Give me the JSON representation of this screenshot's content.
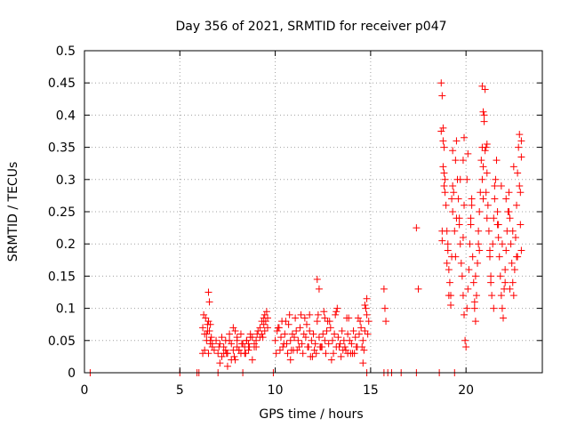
{
  "chart_data": {
    "type": "scatter",
    "title": "Day 356 of 2021, SRMTID for receiver p047",
    "xlabel": "GPS time / hours",
    "ylabel": "SRMTID / TECUs",
    "xlim": [
      0,
      24
    ],
    "ylim": [
      0,
      0.5
    ],
    "xticks": [
      0,
      5,
      10,
      15,
      20
    ],
    "yticks": [
      0,
      0.05,
      0.1,
      0.15,
      0.2,
      0.25,
      0.3,
      0.35,
      0.4,
      0.45,
      0.5
    ],
    "xtick_labels": [
      "0",
      "5",
      "10",
      "15",
      "20"
    ],
    "ytick_labels": [
      "0",
      "0.05",
      "0.1",
      "0.15",
      "0.2",
      "0.25",
      "0.3",
      "0.35",
      "0.4",
      "0.45",
      "0.5"
    ],
    "grid": true,
    "marker": "plus",
    "color": "#ff0000",
    "series": [
      {
        "name": "SRMTID",
        "x": [
          0.3,
          5.0,
          5.9,
          6.0,
          15.7,
          15.9,
          16.1,
          16.6,
          17.4,
          18.6,
          19.4,
          7.0,
          8.3,
          9.9,
          14.8,
          6.2,
          6.3,
          6.4,
          6.5,
          6.6,
          6.7,
          6.8,
          6.9,
          7.0,
          7.1,
          7.2,
          7.3,
          7.4,
          7.5,
          7.6,
          7.7,
          7.8,
          7.9,
          8.0,
          8.1,
          8.2,
          8.3,
          8.4,
          8.5,
          8.6,
          8.7,
          8.8,
          8.9,
          9.0,
          9.1,
          9.2,
          9.3,
          9.4,
          9.5,
          9.6,
          6.25,
          6.35,
          6.45,
          6.55,
          6.65,
          7.05,
          7.45,
          7.85,
          8.25,
          8.65,
          9.05,
          9.45,
          6.3,
          6.5,
          6.7,
          7.2,
          7.6,
          8.0,
          8.4,
          8.8,
          9.2,
          9.6,
          6.4,
          6.6,
          7.3,
          7.7,
          8.1,
          8.5,
          8.9,
          9.3,
          6.5,
          6.55,
          7.9,
          8.7,
          9.45,
          9.55,
          6.2,
          6.6,
          7.1,
          7.5,
          8.0,
          8.2,
          8.6,
          9.0,
          9.4,
          6.45,
          7.4,
          7.8,
          8.45,
          9.35,
          10.0,
          10.1,
          10.2,
          10.3,
          10.4,
          10.5,
          10.6,
          10.7,
          10.8,
          10.9,
          11.0,
          11.1,
          11.2,
          11.3,
          11.4,
          11.5,
          11.6,
          11.7,
          11.8,
          11.9,
          12.0,
          12.1,
          12.2,
          12.3,
          12.4,
          12.5,
          12.6,
          12.7,
          12.8,
          12.9,
          13.0,
          13.1,
          13.2,
          13.3,
          13.4,
          13.5,
          13.6,
          13.7,
          13.8,
          13.9,
          14.0,
          14.1,
          14.2,
          14.3,
          14.4,
          14.5,
          14.6,
          14.7,
          14.8,
          14.9,
          10.05,
          10.25,
          10.45,
          10.65,
          10.85,
          11.05,
          11.25,
          11.45,
          11.65,
          11.85,
          12.05,
          12.25,
          12.45,
          12.65,
          12.85,
          13.05,
          13.25,
          13.45,
          13.65,
          13.85,
          14.05,
          14.25,
          14.45,
          14.65,
          14.85,
          10.15,
          10.55,
          10.95,
          11.35,
          11.75,
          12.15,
          12.55,
          12.95,
          13.35,
          13.75,
          14.15,
          14.55,
          14.75,
          10.35,
          10.75,
          11.15,
          11.55,
          11.95,
          12.35,
          12.75,
          13.15,
          13.55,
          13.95,
          14.35,
          12.2,
          12.3,
          14.8,
          14.7,
          13.2,
          11.8,
          12.6,
          10.8,
          13.8,
          14.6,
          15.7,
          15.75,
          15.8,
          17.4,
          17.5,
          18.7,
          18.75,
          18.8,
          18.85,
          18.9,
          18.95,
          19.0,
          19.05,
          19.1,
          19.15,
          19.2,
          19.25,
          19.3,
          19.35,
          19.4,
          19.45,
          19.5,
          19.55,
          19.6,
          19.65,
          19.7,
          19.75,
          19.8,
          19.85,
          19.9,
          19.95,
          20.0,
          20.05,
          20.1,
          20.15,
          20.2,
          20.25,
          20.3,
          20.35,
          20.4,
          20.45,
          20.5,
          20.55,
          20.6,
          20.65,
          20.7,
          20.75,
          20.8,
          20.85,
          20.9,
          20.95,
          21.0,
          21.05,
          21.1,
          21.15,
          21.2,
          21.25,
          21.3,
          21.35,
          21.4,
          21.45,
          21.5,
          21.55,
          21.6,
          21.65,
          21.7,
          21.75,
          21.8,
          21.85,
          21.9,
          21.95,
          22.0,
          22.05,
          22.1,
          22.15,
          22.2,
          22.25,
          22.3,
          22.35,
          22.4,
          22.45,
          22.5,
          22.55,
          22.6,
          22.65,
          22.7,
          22.75,
          22.8,
          22.85,
          22.9,
          18.8,
          18.9,
          19.0,
          19.1,
          19.3,
          19.5,
          19.7,
          19.9,
          20.1,
          20.3,
          20.5,
          20.7,
          20.9,
          21.1,
          21.3,
          21.5,
          21.7,
          21.9,
          22.1,
          22.3,
          22.5,
          22.7,
          22.9,
          18.75,
          18.85,
          19.05,
          19.25,
          19.45,
          19.65,
          19.85,
          20.05,
          20.25,
          20.45,
          20.65,
          20.85,
          21.05,
          21.25,
          21.45,
          21.65,
          21.85,
          22.05,
          22.25,
          22.45,
          22.65,
          22.85,
          18.7,
          18.8,
          18.75,
          18.85,
          20.85,
          20.9,
          20.95,
          19.9,
          19.85,
          21.0,
          21.1,
          22.8,
          22.9,
          19.2,
          19.3
        ],
        "y": [
          0.0,
          0.0,
          0.0,
          0.0,
          0.0,
          0.0,
          0.0,
          0.0,
          0.0,
          0.0,
          0.0,
          0.0,
          0.0,
          0.0,
          0.0,
          0.07,
          0.06,
          0.05,
          0.08,
          0.045,
          0.04,
          0.035,
          0.05,
          0.03,
          0.045,
          0.025,
          0.04,
          0.035,
          0.03,
          0.05,
          0.045,
          0.035,
          0.02,
          0.04,
          0.035,
          0.03,
          0.045,
          0.04,
          0.05,
          0.035,
          0.06,
          0.055,
          0.045,
          0.05,
          0.065,
          0.07,
          0.06,
          0.075,
          0.08,
          0.07,
          0.09,
          0.085,
          0.075,
          0.065,
          0.055,
          0.04,
          0.03,
          0.025,
          0.045,
          0.04,
          0.06,
          0.065,
          0.035,
          0.03,
          0.045,
          0.055,
          0.06,
          0.05,
          0.03,
          0.02,
          0.055,
          0.085,
          0.06,
          0.05,
          0.03,
          0.02,
          0.035,
          0.05,
          0.04,
          0.08,
          0.125,
          0.11,
          0.065,
          0.055,
          0.09,
          0.095,
          0.03,
          0.075,
          0.015,
          0.01,
          0.055,
          0.06,
          0.045,
          0.04,
          0.085,
          0.065,
          0.05,
          0.07,
          0.03,
          0.055,
          0.05,
          0.065,
          0.07,
          0.055,
          0.04,
          0.06,
          0.045,
          0.075,
          0.05,
          0.06,
          0.055,
          0.065,
          0.05,
          0.07,
          0.045,
          0.06,
          0.055,
          0.04,
          0.065,
          0.05,
          0.06,
          0.045,
          0.08,
          0.055,
          0.04,
          0.06,
          0.05,
          0.065,
          0.045,
          0.07,
          0.05,
          0.06,
          0.04,
          0.055,
          0.045,
          0.065,
          0.05,
          0.035,
          0.06,
          0.05,
          0.045,
          0.065,
          0.055,
          0.04,
          0.06,
          0.07,
          0.05,
          0.065,
          0.09,
          0.08,
          0.03,
          0.035,
          0.045,
          0.03,
          0.035,
          0.085,
          0.04,
          0.03,
          0.075,
          0.025,
          0.035,
          0.09,
          0.04,
          0.03,
          0.08,
          0.03,
          0.1,
          0.025,
          0.04,
          0.085,
          0.03,
          0.04,
          0.08,
          0.035,
          0.06,
          0.07,
          0.08,
          0.035,
          0.09,
          0.04,
          0.03,
          0.095,
          0.02,
          0.04,
          0.085,
          0.03,
          0.04,
          0.1,
          0.08,
          0.09,
          0.035,
          0.085,
          0.025,
          0.04,
          0.08,
          0.09,
          0.035,
          0.03,
          0.085,
          0.145,
          0.13,
          0.115,
          0.105,
          0.095,
          0.09,
          0.085,
          0.02,
          0.03,
          0.015,
          0.13,
          0.1,
          0.08,
          0.225,
          0.13,
          0.45,
          0.43,
          0.38,
          0.35,
          0.3,
          0.26,
          0.22,
          0.19,
          0.16,
          0.14,
          0.12,
          0.18,
          0.25,
          0.28,
          0.22,
          0.33,
          0.36,
          0.3,
          0.27,
          0.24,
          0.2,
          0.17,
          0.15,
          0.12,
          0.09,
          0.05,
          0.04,
          0.1,
          0.13,
          0.16,
          0.2,
          0.23,
          0.26,
          0.18,
          0.14,
          0.1,
          0.08,
          0.12,
          0.17,
          0.22,
          0.25,
          0.28,
          0.33,
          0.3,
          0.27,
          0.4,
          0.44,
          0.35,
          0.31,
          0.26,
          0.22,
          0.18,
          0.15,
          0.12,
          0.2,
          0.24,
          0.27,
          0.3,
          0.33,
          0.25,
          0.21,
          0.18,
          0.15,
          0.12,
          0.1,
          0.085,
          0.13,
          0.16,
          0.19,
          0.22,
          0.25,
          0.28,
          0.24,
          0.2,
          0.17,
          0.14,
          0.12,
          0.16,
          0.21,
          0.26,
          0.31,
          0.35,
          0.29,
          0.23,
          0.19,
          0.36,
          0.28,
          0.17,
          0.12,
          0.29,
          0.24,
          0.3,
          0.26,
          0.34,
          0.27,
          0.15,
          0.19,
          0.32,
          0.24,
          0.14,
          0.29,
          0.23,
          0.2,
          0.27,
          0.13,
          0.32,
          0.18,
          0.36,
          0.22,
          0.31,
          0.2,
          0.27,
          0.18,
          0.23,
          0.21,
          0.3,
          0.24,
          0.11,
          0.2,
          0.35,
          0.28,
          0.19,
          0.1,
          0.23,
          0.29,
          0.14,
          0.25,
          0.22,
          0.18,
          0.28,
          0.375,
          0.32,
          0.205,
          0.29,
          0.445,
          0.405,
          0.39,
          0.365,
          0.33,
          0.345,
          0.355,
          0.37,
          0.335,
          0.105,
          0.345
        ]
      }
    ]
  }
}
